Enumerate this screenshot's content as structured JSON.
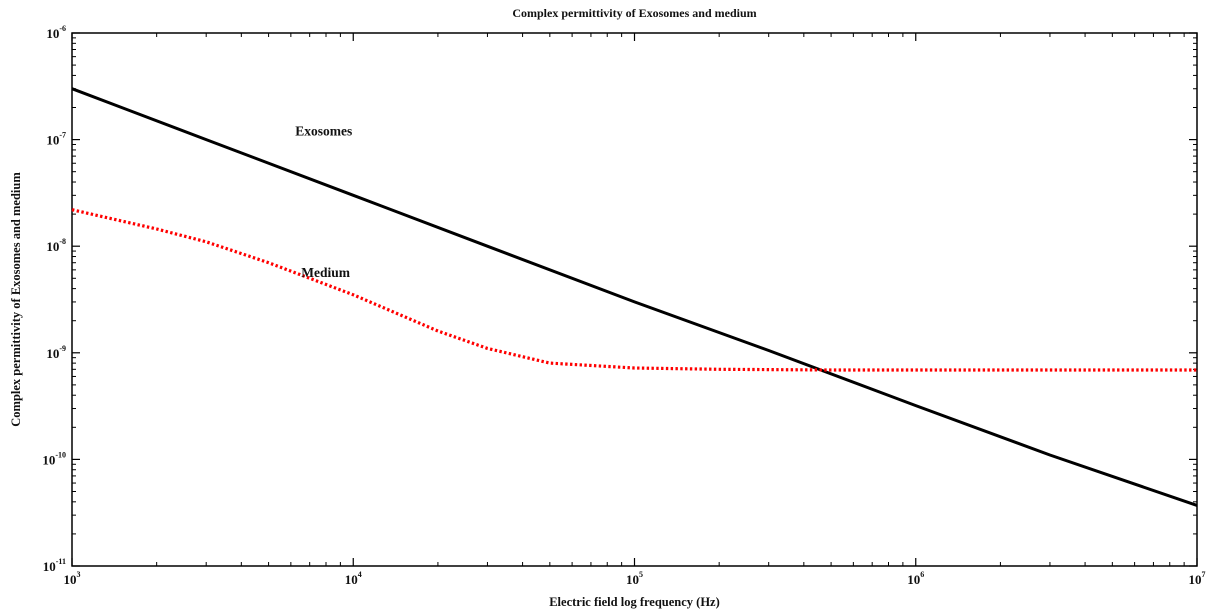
{
  "chart_data": {
    "type": "line",
    "title": "Complex permittivity of Exosomes and medium",
    "xlabel": "Electric field log frequency (Hz)",
    "ylabel": "Complex permittivity of Exosomes and medium",
    "xscale": "log",
    "yscale": "log",
    "xlim": [
      1000,
      10000000
    ],
    "ylim": [
      1e-11,
      1e-06
    ],
    "grid": false,
    "legend": "none",
    "x_ticks": [
      {
        "base": "10",
        "exp": "3",
        "value": 1000
      },
      {
        "base": "10",
        "exp": "4",
        "value": 10000
      },
      {
        "base": "10",
        "exp": "5",
        "value": 100000
      },
      {
        "base": "10",
        "exp": "6",
        "value": 1000000
      },
      {
        "base": "10",
        "exp": "7",
        "value": 10000000
      }
    ],
    "y_ticks": [
      {
        "base": "10",
        "exp": "-6",
        "value": 1e-06
      },
      {
        "base": "10",
        "exp": "-7",
        "value": 1e-07
      },
      {
        "base": "10",
        "exp": "-8",
        "value": 1e-08
      },
      {
        "base": "10",
        "exp": "-9",
        "value": 1e-09
      },
      {
        "base": "10",
        "exp": "-10",
        "value": 1e-10
      },
      {
        "base": "10",
        "exp": "-11",
        "value": 1e-11
      }
    ],
    "series": [
      {
        "name": "Exosomes",
        "color": "#000000",
        "style": "solid",
        "x": [
          1000,
          3000,
          10000,
          30000,
          100000,
          300000,
          1000000,
          3000000,
          10000000
        ],
        "y": [
          3e-07,
          1e-07,
          3e-08,
          1e-08,
          3e-09,
          1.05e-09,
          3.2e-10,
          1.1e-10,
          3.7e-11
        ]
      },
      {
        "name": "Medium",
        "color": "#ff0000",
        "style": "dotted",
        "x": [
          1000,
          2000,
          3000,
          5000,
          10000,
          20000,
          30000,
          50000,
          100000,
          200000,
          500000,
          1000000,
          3000000,
          10000000
        ],
        "y": [
          2.2e-08,
          1.45e-08,
          1.1e-08,
          7e-09,
          3.5e-09,
          1.6e-09,
          1.1e-09,
          8e-10,
          7.2e-10,
          7e-10,
          6.9e-10,
          6.9e-10,
          6.9e-10,
          6.9e-10
        ]
      }
    ],
    "annotations": [
      {
        "text": "Exosomes",
        "series": "Exosomes",
        "x": 10000,
        "y": 1e-07
      },
      {
        "text": "Medium",
        "series": "Medium",
        "x": 10000,
        "y": 4.5e-09
      }
    ]
  }
}
